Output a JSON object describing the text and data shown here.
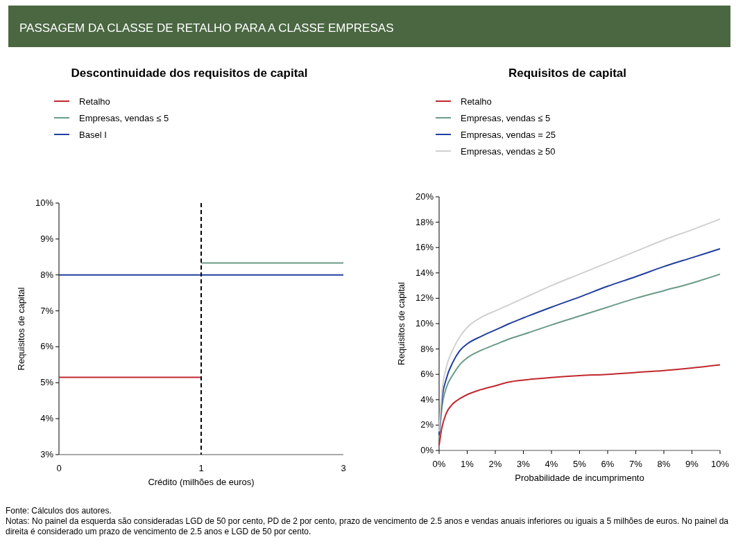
{
  "chart_data": [
    {
      "type": "line",
      "title": "Descontinuidade dos requisitos de capital",
      "xlabel": "Crédito (milhões de euros)",
      "ylabel": "Requisitos de capital",
      "categories": [
        "0",
        "1",
        "3"
      ],
      "series": [
        {
          "name": "Retalho",
          "color": "#c0272d",
          "values": [
            5.15,
            5.15,
            null
          ]
        },
        {
          "name": "Empresas, vendas ≤ 5",
          "color": "#6a9a85",
          "values": [
            null,
            8.33,
            8.33
          ]
        },
        {
          "name": "Basel I",
          "color": "#1f3f9f",
          "values": [
            8,
            8,
            8
          ]
        }
      ],
      "ylim": [
        3,
        10
      ],
      "yticks": [
        {
          "value": 3,
          "label": "3%"
        },
        {
          "value": 4,
          "label": "4%"
        },
        {
          "value": 5,
          "label": "5%"
        },
        {
          "value": 6,
          "label": "6%"
        },
        {
          "value": 7,
          "label": "7%"
        },
        {
          "value": 8,
          "label": "8%"
        },
        {
          "value": 9,
          "label": "9%"
        },
        {
          "value": 10,
          "label": "10%"
        }
      ],
      "ref_lines": [
        {
          "axis": "x",
          "value": "1",
          "color": "#000000",
          "line_style": "dashed"
        }
      ],
      "legend": "top left",
      "grid": false,
      "annotations": [
        "PASSAGEM DA CLASSE DE RETALHO PARA A CLASSE EMPRESAS"
      ]
    },
    {
      "type": "line",
      "title": "Requisitos de capital",
      "xlabel": "Probabilidade de incumprimento",
      "ylabel": "Requisitos de capital",
      "x": [
        0,
        0.1,
        0.25,
        0.5,
        0.75,
        1,
        1.5,
        2,
        2.5,
        3,
        4,
        5,
        6,
        7,
        8,
        9,
        10
      ],
      "series": [
        {
          "name": "Retalho",
          "color": "#c0272d",
          "values": [
            0.4,
            1.8,
            2.9,
            3.7,
            4.1,
            4.4,
            4.8,
            5.1,
            5.4,
            5.55,
            5.75,
            5.9,
            6.0,
            6.15,
            6.3,
            6.5,
            6.75
          ]
        },
        {
          "name": "Empresas, vendas ≤ 5",
          "color": "#6a9a85",
          "values": [
            1.0,
            3.4,
            4.9,
            6.0,
            6.8,
            7.3,
            7.9,
            8.35,
            8.8,
            9.15,
            9.9,
            10.6,
            11.3,
            12.0,
            12.6,
            13.2,
            13.9
          ]
        },
        {
          "name": "Empresas, vendas = 25",
          "color": "#1f3f9f",
          "values": [
            1.2,
            4.0,
            5.6,
            7.0,
            7.9,
            8.4,
            9.0,
            9.5,
            10.0,
            10.45,
            11.3,
            12.1,
            12.95,
            13.7,
            14.5,
            15.2,
            15.9
          ]
        },
        {
          "name": "Empresas, vendas ≥ 50",
          "color": "#d0d0d0",
          "values": [
            1.5,
            4.6,
            6.5,
            8.0,
            9.0,
            9.7,
            10.5,
            11.0,
            11.5,
            12.0,
            13.0,
            13.9,
            14.8,
            15.7,
            16.6,
            17.4,
            18.25
          ]
        }
      ],
      "xlim": [
        0,
        10
      ],
      "xticks": [
        {
          "value": 0,
          "label": "0%"
        },
        {
          "value": 1,
          "label": "1%"
        },
        {
          "value": 2,
          "label": "2%"
        },
        {
          "value": 3,
          "label": "3%"
        },
        {
          "value": 4,
          "label": "4%"
        },
        {
          "value": 5,
          "label": "5%"
        },
        {
          "value": 6,
          "label": "6%"
        },
        {
          "value": 7,
          "label": "7%"
        },
        {
          "value": 8,
          "label": "8%"
        },
        {
          "value": 9,
          "label": "9%"
        },
        {
          "value": 10,
          "label": "10%"
        }
      ],
      "ylim": [
        0,
        20
      ],
      "yticks": [
        {
          "value": 0,
          "label": "0%"
        },
        {
          "value": 2,
          "label": "2%"
        },
        {
          "value": 4,
          "label": "4%"
        },
        {
          "value": 6,
          "label": "6%"
        },
        {
          "value": 8,
          "label": "8%"
        },
        {
          "value": 10,
          "label": "10%"
        },
        {
          "value": 12,
          "label": "12%"
        },
        {
          "value": 14,
          "label": "14%"
        },
        {
          "value": 16,
          "label": "16%"
        },
        {
          "value": 18,
          "label": "18%"
        },
        {
          "value": 20,
          "label": "20%"
        }
      ],
      "legend": "top left",
      "grid": false,
      "annotations": [
        "Fonte: Cálculos dos autores.",
        "Notas: No painel da esquerda são consideradas LGD de 50 por cento, PD de 2 por cento, prazo de vencimento de 2.5 anos e vendas anuais inferiores ou iguais a 5 milhões de euros. No painel da direita é considerado um prazo de vencimento de 2.5 anos e LGD de 50 por cento."
      ]
    }
  ]
}
